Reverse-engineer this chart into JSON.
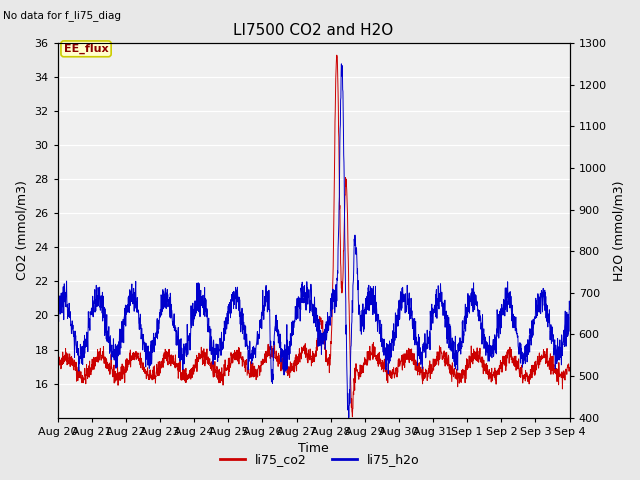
{
  "title": "LI7500 CO2 and H2O",
  "top_left_text": "No data for f_li75_diag",
  "xlabel": "Time",
  "ylabel_left": "CO2 (mmol/m3)",
  "ylabel_right": "H2O (mmol/m3)",
  "ylim_left": [
    14,
    36
  ],
  "ylim_right": [
    400,
    1300
  ],
  "yticks_left": [
    16,
    18,
    20,
    22,
    24,
    26,
    28,
    30,
    32,
    34,
    36
  ],
  "yticks_right": [
    400,
    500,
    600,
    700,
    800,
    900,
    1000,
    1100,
    1200,
    1300
  ],
  "xtick_labels": [
    "Aug 20",
    "Aug 21",
    "Aug 22",
    "Aug 23",
    "Aug 24",
    "Aug 25",
    "Aug 26",
    "Aug 27",
    "Aug 28",
    "Aug 29",
    "Aug 30",
    "Aug 31",
    "Sep 1",
    "Sep 2",
    "Sep 3",
    "Sep 4"
  ],
  "legend_labels": [
    "li75_co2",
    "li75_h2o"
  ],
  "co2_color": "#cc0000",
  "h2o_color": "#0000cc",
  "bg_color": "#e8e8e8",
  "plot_bg_color": "#f0f0f0",
  "ee_flux_box_color": "#ffffcc",
  "ee_flux_text_color": "#8b0000",
  "ee_flux_border_color": "#cccc00",
  "n_points": 2000,
  "seed": 42
}
